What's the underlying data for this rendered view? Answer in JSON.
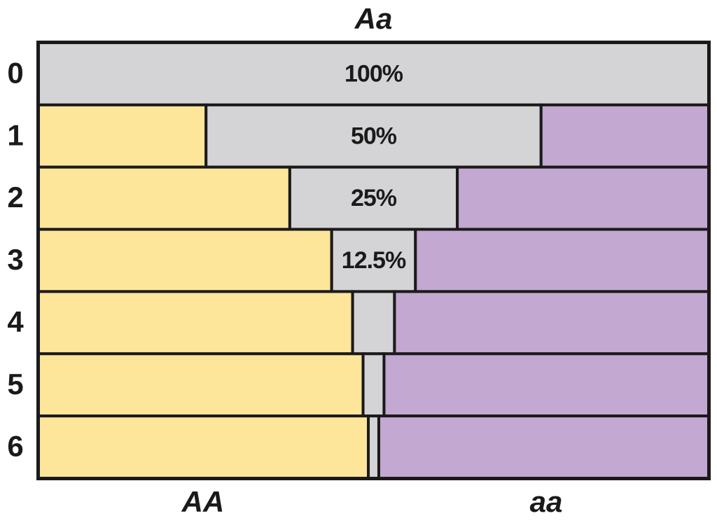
{
  "chart_data": {
    "type": "stacked-bar-horizontal",
    "categories": [
      "0",
      "1",
      "2",
      "3",
      "4",
      "5",
      "6"
    ],
    "xlim": [
      0,
      100
    ],
    "series": [
      {
        "name": "AA",
        "color": "#fde59a",
        "values": [
          0,
          25,
          37.5,
          43.75,
          46.875,
          48.4375,
          49.21875
        ]
      },
      {
        "name": "Aa",
        "color": "#d4d3d6",
        "values": [
          100,
          50,
          25,
          12.5,
          6.25,
          3.125,
          1.5625
        ],
        "value_labels": [
          "100%",
          "50%",
          "25%",
          "12.5%",
          null,
          null,
          null
        ]
      },
      {
        "name": "aa",
        "color": "#c3a8d1",
        "values": [
          0,
          25,
          37.5,
          43.75,
          46.875,
          48.4375,
          49.21875
        ]
      }
    ]
  }
}
